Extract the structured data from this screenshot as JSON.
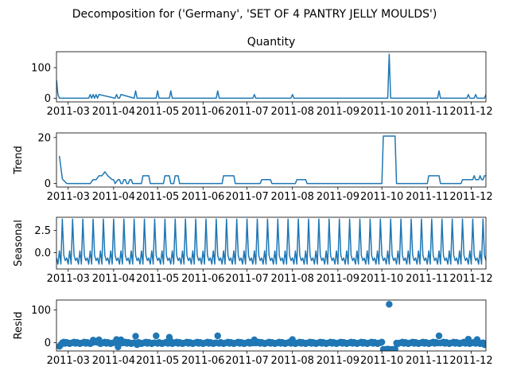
{
  "figure": {
    "suptitle": "Decomposition for ('Germany', 'SET OF 4 PANTRY JELLY MOULDS')"
  },
  "chart_data": [
    {
      "type": "line",
      "title": "Quantity",
      "ylabel": "",
      "ylim": [
        -12,
        152
      ],
      "yticks": [
        0,
        100
      ],
      "xlim": [
        "2011-02-21",
        "2011-12-11"
      ],
      "xticks": [
        "2011-03",
        "2011-04",
        "2011-05",
        "2011-06",
        "2011-07",
        "2011-08",
        "2011-09",
        "2011-10",
        "2011-11",
        "2011-12"
      ],
      "series": [
        {
          "x": [
            "2011-02-21",
            "2011-02-22",
            "2011-02-23",
            "2011-03-15",
            "2011-03-16",
            "2011-03-17",
            "2011-03-18",
            "2011-03-19",
            "2011-03-20",
            "2011-03-21",
            "2011-03-22",
            "2011-04-02",
            "2011-04-03",
            "2011-04-04",
            "2011-04-05",
            "2011-04-06",
            "2011-04-15",
            "2011-04-16",
            "2011-04-17",
            "2011-04-30",
            "2011-05-01",
            "2011-05-02",
            "2011-05-09",
            "2011-05-10",
            "2011-05-11",
            "2011-06-10",
            "2011-06-11",
            "2011-06-12",
            "2011-07-05",
            "2011-07-06",
            "2011-07-07",
            "2011-07-31",
            "2011-08-01",
            "2011-08-02",
            "2011-10-05",
            "2011-10-06",
            "2011-10-07",
            "2011-11-08",
            "2011-11-09",
            "2011-11-10",
            "2011-11-28",
            "2011-11-29",
            "2011-11-30",
            "2011-12-03",
            "2011-12-04",
            "2011-12-05",
            "2011-12-10",
            "2011-12-11"
          ],
          "values": [
            60,
            12,
            0,
            0,
            12,
            0,
            12,
            0,
            12,
            0,
            12,
            0,
            12,
            0,
            0,
            12,
            0,
            24,
            0,
            0,
            24,
            0,
            0,
            24,
            0,
            0,
            24,
            0,
            0,
            12,
            0,
            0,
            12,
            0,
            0,
            144,
            0,
            0,
            24,
            0,
            0,
            12,
            0,
            0,
            12,
            0,
            0,
            12
          ]
        }
      ]
    },
    {
      "type": "line",
      "title": "",
      "ylabel": "Trend",
      "ylim": [
        -1.5,
        22
      ],
      "yticks": [
        0,
        20
      ],
      "xlim": [
        "2011-02-21",
        "2011-12-11"
      ],
      "xticks": [
        "2011-03",
        "2011-04",
        "2011-05",
        "2011-06",
        "2011-07",
        "2011-08",
        "2011-09",
        "2011-10",
        "2011-11",
        "2011-12"
      ],
      "series": [
        {
          "x": [
            "2011-02-23",
            "2011-02-25",
            "2011-02-28",
            "2011-03-16",
            "2011-03-18",
            "2011-03-20",
            "2011-03-22",
            "2011-03-24",
            "2011-03-26",
            "2011-03-28",
            "2011-03-31",
            "2011-04-01",
            "2011-04-02",
            "2011-04-04",
            "2011-04-05",
            "2011-04-06",
            "2011-04-07",
            "2011-04-08",
            "2011-04-09",
            "2011-04-10",
            "2011-04-11",
            "2011-04-12",
            "2011-04-13",
            "2011-04-14",
            "2011-04-20",
            "2011-04-21",
            "2011-04-22",
            "2011-04-23",
            "2011-04-24",
            "2011-04-25",
            "2011-04-26",
            "2011-04-27",
            "2011-04-28",
            "2011-04-29",
            "2011-05-05",
            "2011-05-06",
            "2011-05-07",
            "2011-05-08",
            "2011-05-09",
            "2011-05-10",
            "2011-05-11",
            "2011-05-12",
            "2011-05-13",
            "2011-05-14",
            "2011-05-15",
            "2011-05-16",
            "2011-05-17",
            "2011-06-14",
            "2011-06-15",
            "2011-06-22",
            "2011-06-23",
            "2011-07-10",
            "2011-07-11",
            "2011-07-17",
            "2011-07-18",
            "2011-08-03",
            "2011-08-04",
            "2011-08-10",
            "2011-08-11",
            "2011-10-01",
            "2011-10-02",
            "2011-10-10",
            "2011-10-11",
            "2011-11-01",
            "2011-11-02",
            "2011-11-09",
            "2011-11-10",
            "2011-11-24",
            "2011-11-25",
            "2011-12-01",
            "2011-12-02",
            "2011-12-03",
            "2011-12-04",
            "2011-12-05",
            "2011-12-06",
            "2011-12-07",
            "2011-12-08",
            "2011-12-09",
            "2011-12-10",
            "2011-12-11"
          ],
          "values": [
            12,
            2,
            0,
            0,
            1.7,
            1.7,
            3.4,
            3.4,
            5.1,
            3.4,
            1.7,
            1.7,
            0,
            1.7,
            1.7,
            0,
            0,
            1.7,
            1.7,
            0,
            0,
            1.7,
            1.7,
            0,
            0,
            3.4,
            3.4,
            3.4,
            3.4,
            3.4,
            0,
            0,
            0,
            0,
            0,
            3.4,
            3.4,
            3.4,
            3.4,
            0,
            0,
            0,
            3.4,
            3.4,
            3.4,
            0,
            0,
            0,
            3.4,
            3.4,
            0,
            0,
            1.7,
            1.7,
            0,
            0,
            1.7,
            1.7,
            0,
            0,
            20.6,
            20.6,
            0,
            0,
            3.4,
            3.4,
            0,
            0,
            1.7,
            1.7,
            1.7,
            3.4,
            1.7,
            1.7,
            1.7,
            3.4,
            1.7,
            1.7,
            3.4,
            3.4
          ]
        }
      ]
    },
    {
      "type": "line",
      "title": "",
      "ylabel": "Seasonal",
      "ylim": [
        -1.85,
        4.0
      ],
      "yticks": [
        0.0,
        2.5
      ],
      "xlim": [
        "2011-02-21",
        "2011-12-11"
      ],
      "xticks": [
        "2011-03",
        "2011-04",
        "2011-05",
        "2011-06",
        "2011-07",
        "2011-08",
        "2011-09",
        "2011-10",
        "2011-11",
        "2011-12"
      ],
      "period": 7,
      "series": [
        {
          "x_start": "2011-02-21",
          "x_end": "2011-12-11",
          "pattern": [
            -0.6,
            -1.3,
            0.2,
            -1.3,
            3.8,
            -0.3,
            -0.9
          ]
        }
      ]
    },
    {
      "type": "scatter",
      "title": "",
      "ylabel": "Resid",
      "ylim": [
        -25,
        130
      ],
      "yticks": [
        0,
        100
      ],
      "xlim": [
        "2011-02-21",
        "2011-12-11"
      ],
      "xticks": [
        "2011-03",
        "2011-04",
        "2011-05",
        "2011-06",
        "2011-07",
        "2011-08",
        "2011-09",
        "2011-10",
        "2011-11",
        "2011-12"
      ],
      "base_x_start": "2011-02-23",
      "base_x_end": "2011-12-11",
      "base_cycle": [
        -3,
        -1,
        0,
        2,
        -2,
        1,
        -1
      ],
      "highlights": [
        {
          "x": "2011-02-23",
          "y": -11
        },
        {
          "x": "2011-02-24",
          "y": -6
        },
        {
          "x": "2011-03-18",
          "y": 8
        },
        {
          "x": "2011-03-20",
          "y": 5
        },
        {
          "x": "2011-03-22",
          "y": 9
        },
        {
          "x": "2011-04-03",
          "y": 10
        },
        {
          "x": "2011-04-04",
          "y": -13
        },
        {
          "x": "2011-04-06",
          "y": 9
        },
        {
          "x": "2011-04-16",
          "y": 20
        },
        {
          "x": "2011-04-17",
          "y": -6
        },
        {
          "x": "2011-04-30",
          "y": 21
        },
        {
          "x": "2011-05-09",
          "y": 17
        },
        {
          "x": "2011-05-10",
          "y": 5
        },
        {
          "x": "2011-06-11",
          "y": 21
        },
        {
          "x": "2011-07-06",
          "y": 9
        },
        {
          "x": "2011-08-01",
          "y": 10
        },
        {
          "x": "2011-10-02",
          "y": -20
        },
        {
          "x": "2011-10-03",
          "y": -21
        },
        {
          "x": "2011-10-04",
          "y": -20
        },
        {
          "x": "2011-10-05",
          "y": -19
        },
        {
          "x": "2011-10-06",
          "y": 117
        },
        {
          "x": "2011-10-07",
          "y": -20
        },
        {
          "x": "2011-10-08",
          "y": -21
        },
        {
          "x": "2011-10-09",
          "y": -20
        },
        {
          "x": "2011-10-10",
          "y": -19
        },
        {
          "x": "2011-11-09",
          "y": 21
        },
        {
          "x": "2011-11-29",
          "y": 11
        },
        {
          "x": "2011-12-05",
          "y": 10
        },
        {
          "x": "2011-12-10",
          "y": -6
        }
      ]
    }
  ]
}
